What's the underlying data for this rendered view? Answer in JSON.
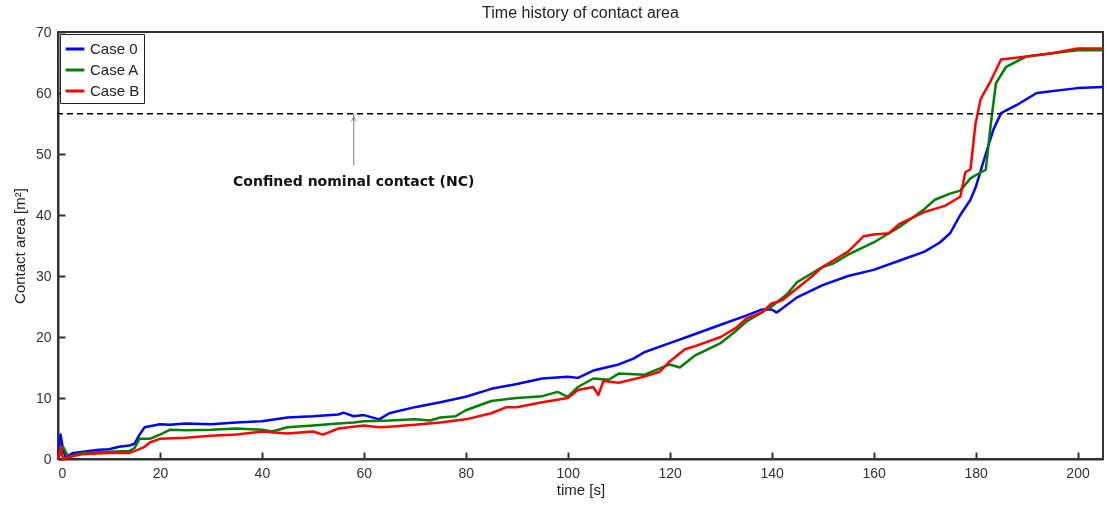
{
  "chart_data": {
    "type": "line",
    "title": "Time history of contact area",
    "xlabel": "time [s]",
    "ylabel": "Contact  area [m²]",
    "xlim": [
      0,
      205
    ],
    "xticks": [
      0,
      20,
      40,
      60,
      80,
      100,
      120,
      140,
      160,
      180,
      200
    ],
    "ylim": [
      0,
      70
    ],
    "yticks": [
      0,
      10,
      20,
      30,
      40,
      50,
      60,
      70
    ],
    "grid": false,
    "legend": "top left",
    "marker": "none",
    "line_style": "solid",
    "ref_lines": [
      {
        "axis": "y",
        "value": 56.6,
        "label": "Confined nominal contact (NC)",
        "color": "#000000",
        "line_style": "dashed"
      }
    ],
    "series": [
      {
        "name": "Case 0",
        "color": "#0000ff",
        "x": [
          0,
          0.5,
          1,
          1.5,
          3,
          5,
          8,
          10,
          12,
          14,
          15,
          16,
          17,
          20,
          22,
          25,
          30,
          35,
          40,
          45,
          50,
          55,
          56,
          58,
          60,
          63,
          65,
          70,
          75,
          80,
          85,
          90,
          95,
          100,
          102,
          105,
          110,
          113,
          115,
          120,
          125,
          130,
          135,
          138,
          140,
          141,
          145,
          150,
          155,
          160,
          165,
          170,
          173,
          175,
          177,
          179,
          180,
          182,
          183.5,
          185,
          188,
          192,
          200,
          205
        ],
        "values": [
          0,
          4,
          1.5,
          0.3,
          1,
          1.2,
          1.5,
          1.6,
          2,
          2.2,
          2.5,
          4,
          5.2,
          5.7,
          5.6,
          5.8,
          5.7,
          6,
          6.2,
          6.8,
          7,
          7.3,
          7.6,
          7,
          7.2,
          6.5,
          7.5,
          8.5,
          9.3,
          10.2,
          11.5,
          12.3,
          13.2,
          13.5,
          13.3,
          14.5,
          15.5,
          16.5,
          17.5,
          19,
          20.5,
          22,
          23.5,
          24.5,
          24.5,
          24,
          26.5,
          28.5,
          30,
          31,
          32.5,
          34,
          35.5,
          37,
          40,
          42.5,
          44.5,
          50,
          54,
          56.7,
          58,
          60,
          60.8,
          61
        ]
      },
      {
        "name": "Case A",
        "color": "#008000",
        "x": [
          0,
          1,
          2,
          3,
          5,
          10,
          14,
          15,
          16,
          18,
          20,
          22,
          25,
          30,
          35,
          40,
          42,
          45,
          50,
          55,
          58,
          60,
          65,
          70,
          73,
          75,
          78,
          80,
          85,
          90,
          95,
          98,
          100,
          102,
          105,
          108,
          110,
          115,
          117,
          120,
          122,
          125,
          130,
          133,
          135,
          138,
          140,
          143,
          145,
          148,
          150,
          152,
          155,
          160,
          165,
          170,
          172,
          175,
          177,
          179,
          181,
          182,
          183,
          184,
          186,
          190,
          195,
          200,
          205
        ],
        "values": [
          0,
          2,
          0.3,
          0.6,
          1,
          1.2,
          1.3,
          1.8,
          3.3,
          3.3,
          4,
          4.8,
          4.7,
          4.8,
          5,
          4.8,
          4.5,
          5.2,
          5.5,
          5.8,
          6,
          6.2,
          6.3,
          6.5,
          6.3,
          6.8,
          7,
          8,
          9.5,
          10,
          10.3,
          11,
          10.2,
          11.8,
          13.2,
          13,
          14,
          13.8,
          14.5,
          15.5,
          15,
          17,
          19,
          21,
          22.5,
          24,
          25,
          27,
          29,
          30.5,
          31.5,
          32,
          33.5,
          35.5,
          38,
          41,
          42.5,
          43.5,
          44,
          46,
          47,
          47.4,
          55,
          61.6,
          64.3,
          66,
          66.5,
          67,
          67
        ]
      },
      {
        "name": "Case B",
        "color": "#ff0000",
        "x": [
          0,
          0.5,
          1,
          3,
          5,
          10,
          14,
          15,
          17,
          18,
          20,
          25,
          30,
          35,
          40,
          45,
          50,
          52,
          55,
          60,
          63,
          65,
          70,
          75,
          80,
          85,
          88,
          90,
          95,
          100,
          102,
          105,
          106,
          107,
          110,
          115,
          118,
          120,
          123,
          125,
          130,
          133,
          135,
          138,
          140,
          142,
          145,
          148,
          150,
          153,
          155,
          158,
          160,
          163,
          165,
          170,
          172,
          174,
          176,
          177,
          178,
          179,
          180,
          181,
          182,
          183,
          185,
          190,
          195,
          200,
          205
        ],
        "values": [
          0,
          2,
          0,
          0.5,
          0.8,
          1,
          1,
          1.3,
          2,
          2.7,
          3.3,
          3.5,
          3.8,
          4,
          4.5,
          4.2,
          4.5,
          4,
          5,
          5.5,
          5.2,
          5.3,
          5.6,
          6,
          6.5,
          7.5,
          8.5,
          8.5,
          9.3,
          10,
          11.3,
          11.8,
          10.5,
          12.8,
          12.5,
          13.5,
          14.3,
          16,
          18,
          18.5,
          20,
          21.5,
          23,
          24,
          25.5,
          26,
          28,
          30,
          31.5,
          33,
          34,
          36.5,
          36.8,
          37,
          38.5,
          40.5,
          41,
          41.5,
          42.5,
          43,
          47,
          47.5,
          55,
          59,
          60.5,
          62,
          65.5,
          66,
          66.5,
          67.3,
          67.3
        ]
      }
    ]
  }
}
